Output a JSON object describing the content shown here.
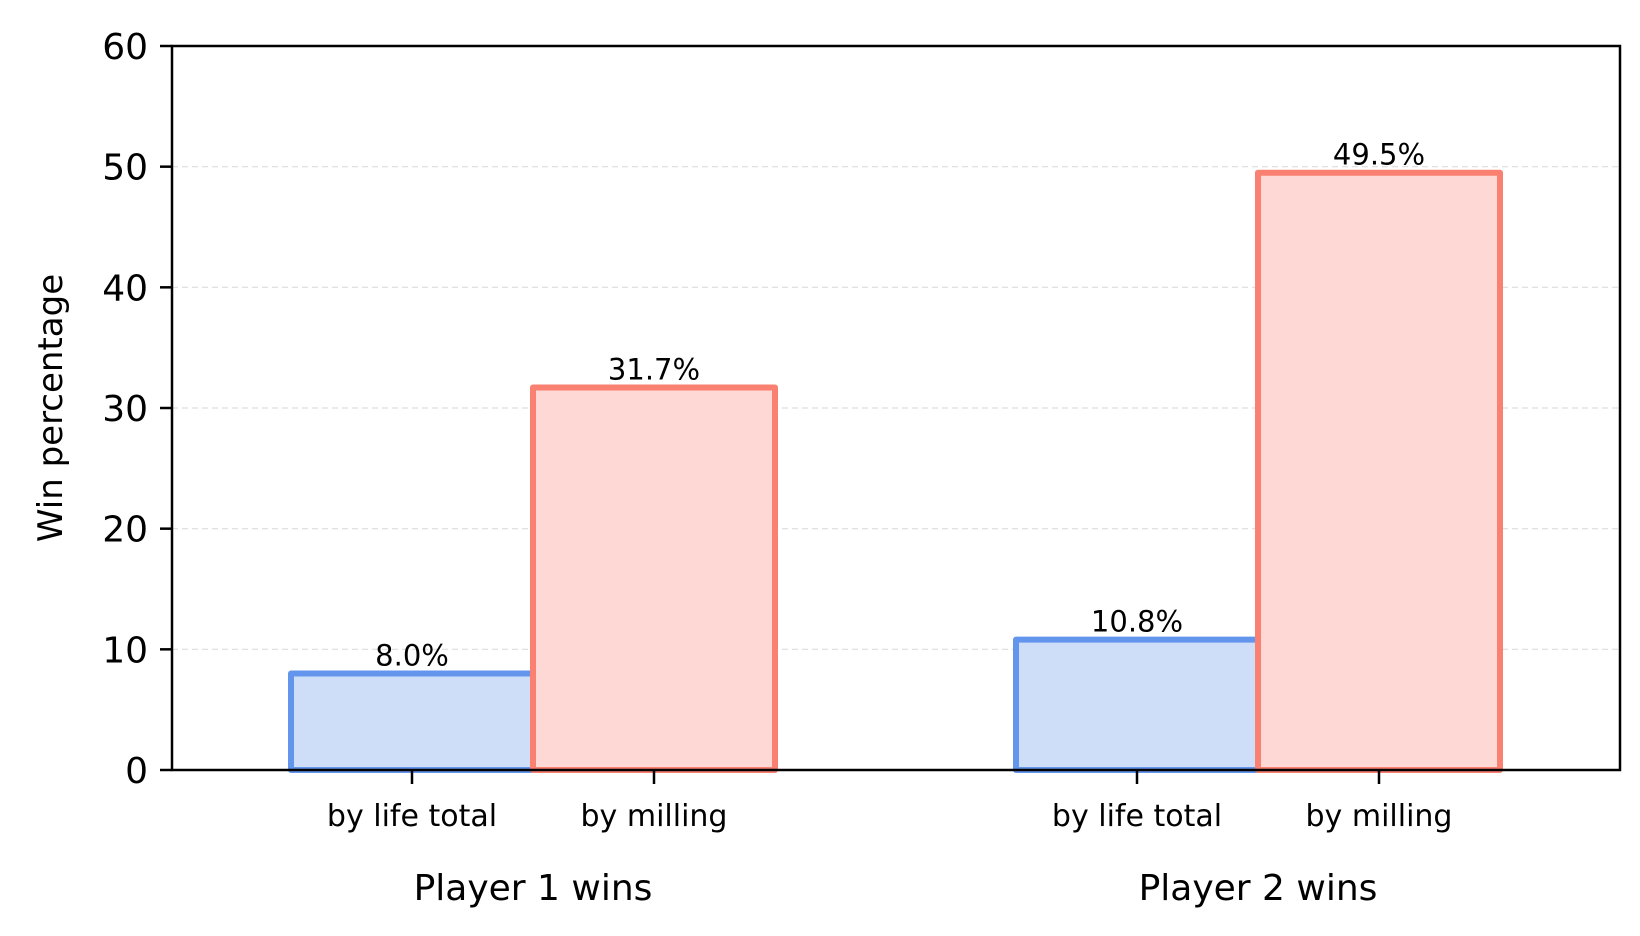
{
  "chart_data": {
    "type": "bar",
    "ylabel": "Win percentage",
    "ylim": [
      0,
      60
    ],
    "yticks": [
      "0",
      "10",
      "20",
      "30",
      "40",
      "50",
      "60"
    ],
    "grid": "horizontal dashed",
    "groups": [
      {
        "label": "Player 1 wins",
        "bars": [
          {
            "category": "by life total",
            "value": 8.0,
            "label": "8.0%",
            "kind": "life"
          },
          {
            "category": "by milling",
            "value": 31.7,
            "label": "31.7%",
            "kind": "milling"
          }
        ]
      },
      {
        "label": "Player 2 wins",
        "bars": [
          {
            "category": "by life total",
            "value": 10.8,
            "label": "10.8%",
            "kind": "life"
          },
          {
            "category": "by milling",
            "value": 49.5,
            "label": "49.5%",
            "kind": "milling"
          }
        ]
      }
    ],
    "colors": {
      "life_edge": "#6495ED",
      "life_fill": "#CFDEF8",
      "milling_edge": "#FA8072",
      "milling_fill": "#FDD8D4",
      "grid": "#dddddd",
      "axis": "#000000"
    }
  }
}
